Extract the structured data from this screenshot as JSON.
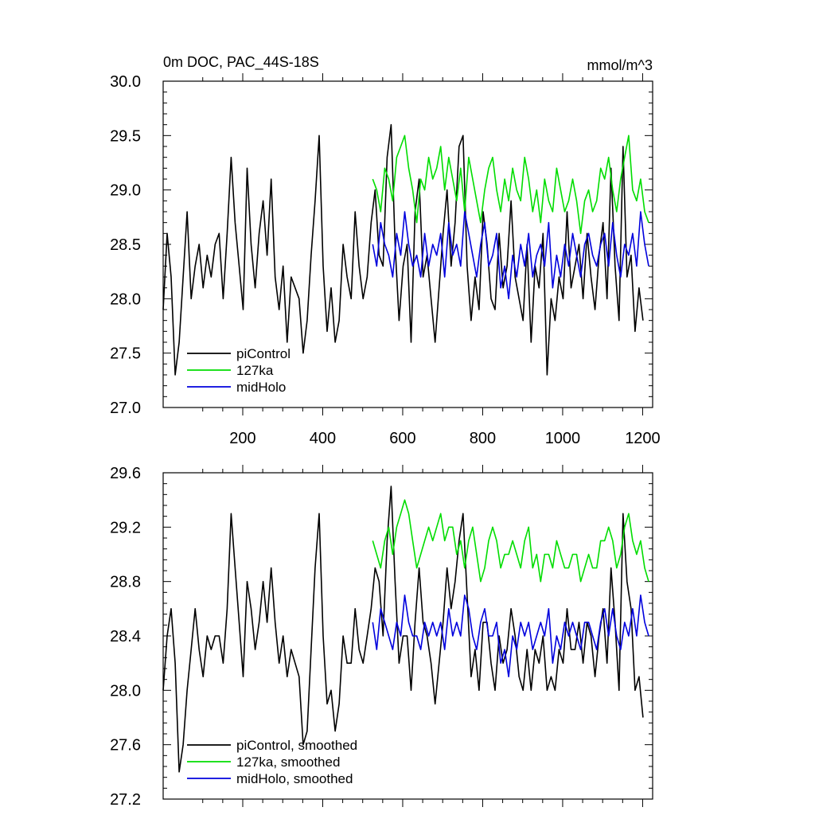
{
  "figure": {
    "title": "0m DOC, PAC_44S-18S",
    "units": "mmol/m^3"
  },
  "colors": {
    "piControl": "#000000",
    "127ka": "#00dd00",
    "midHolo": "#0000dd"
  },
  "chart_data": [
    {
      "type": "line",
      "panel": "top",
      "title": "0m DOC, PAC_44S-18S",
      "units": "mmol/m^3",
      "xlim": [
        1,
        1225
      ],
      "ylim": [
        27.0,
        30.0
      ],
      "xticks": [
        200,
        400,
        600,
        800,
        1000,
        1200
      ],
      "xtick_labels": [
        "200",
        "400",
        "600",
        "800",
        "1000",
        "1200"
      ],
      "yticks": [
        27.0,
        27.5,
        28.0,
        28.5,
        29.0,
        29.5,
        30.0
      ],
      "ytick_labels": [
        "27.0",
        "27.5",
        "28.0",
        "28.5",
        "29.0",
        "29.5",
        "30.0"
      ],
      "legend_position": "bottom-left",
      "series": [
        {
          "name": "piControl",
          "key": "piControl",
          "x_start": 1,
          "x_step": 10,
          "values": [
            27.9,
            28.6,
            28.2,
            27.3,
            27.6,
            28.2,
            28.8,
            28.0,
            28.3,
            28.5,
            28.1,
            28.4,
            28.2,
            28.5,
            28.6,
            28.0,
            28.6,
            29.3,
            28.7,
            28.3,
            27.9,
            29.2,
            28.5,
            28.1,
            28.6,
            28.9,
            28.4,
            29.1,
            28.2,
            27.9,
            28.3,
            27.6,
            28.2,
            28.1,
            28.0,
            27.5,
            27.8,
            28.4,
            28.9,
            29.5,
            28.3,
            27.7,
            28.1,
            27.6,
            27.8,
            28.5,
            28.2,
            28.0,
            28.8,
            28.3,
            28.0,
            28.2,
            28.7,
            29.0,
            28.4,
            28.3,
            29.3,
            29.6,
            28.5,
            27.8,
            28.3,
            28.5,
            27.6,
            28.8,
            29.1,
            28.2,
            28.4,
            28.0,
            27.6,
            28.1,
            28.6,
            29.0,
            28.3,
            28.7,
            29.4,
            29.5,
            28.3,
            27.8,
            28.2,
            27.9,
            28.8,
            28.5,
            28.0,
            27.9,
            28.6,
            28.1,
            28.3,
            28.9,
            28.2,
            28.0,
            27.8,
            28.5,
            27.6,
            28.3,
            28.1,
            28.6,
            27.3,
            28.0,
            27.8,
            28.2,
            28.0,
            28.8,
            28.1,
            28.3,
            28.5,
            28.0,
            28.6,
            28.2,
            27.9,
            28.4,
            28.7,
            28.0,
            29.2,
            28.3,
            27.8,
            29.4,
            28.2,
            28.4,
            27.7,
            28.1,
            27.8
          ]
        },
        {
          "name": "127ka",
          "key": "127ka",
          "x_start": 525,
          "x_step": 10,
          "values": [
            29.1,
            29.0,
            28.8,
            29.2,
            29.1,
            28.9,
            29.3,
            29.4,
            29.5,
            29.2,
            29.0,
            28.7,
            29.1,
            29.0,
            29.3,
            29.1,
            29.2,
            29.4,
            29.0,
            29.3,
            29.1,
            28.9,
            29.2,
            28.8,
            29.3,
            29.1,
            28.9,
            28.7,
            29.0,
            29.2,
            29.3,
            29.0,
            28.8,
            29.1,
            28.9,
            29.2,
            29.0,
            28.9,
            29.3,
            29.1,
            28.8,
            29.0,
            28.7,
            29.1,
            28.9,
            28.8,
            29.2,
            29.0,
            28.8,
            28.9,
            29.1,
            28.9,
            28.6,
            28.9,
            29.0,
            28.8,
            28.9,
            29.2,
            29.1,
            29.3,
            29.0,
            28.8,
            29.1,
            29.3,
            29.5,
            29.0,
            28.9,
            29.1,
            28.8,
            28.7
          ]
        },
        {
          "name": "midHolo",
          "key": "midHolo",
          "x_start": 525,
          "x_step": 10,
          "values": [
            28.5,
            28.3,
            28.7,
            28.5,
            28.4,
            28.2,
            28.6,
            28.4,
            28.8,
            28.5,
            28.3,
            28.4,
            28.2,
            28.6,
            28.3,
            28.5,
            28.4,
            28.6,
            28.2,
            28.7,
            28.4,
            28.5,
            28.3,
            28.8,
            28.6,
            28.4,
            28.2,
            28.5,
            28.7,
            28.3,
            28.4,
            28.6,
            28.1,
            28.3,
            28.0,
            28.4,
            28.2,
            28.5,
            28.3,
            28.6,
            28.2,
            28.4,
            28.5,
            28.3,
            28.7,
            28.1,
            28.4,
            28.2,
            28.5,
            28.3,
            28.6,
            28.4,
            28.2,
            28.5,
            28.6,
            28.4,
            28.3,
            28.5,
            28.6,
            28.3,
            28.7,
            28.4,
            28.2,
            28.5,
            28.4,
            28.6,
            28.3,
            28.8,
            28.5,
            28.3
          ]
        }
      ],
      "legend": [
        "piControl",
        "127ka",
        "midHolo"
      ]
    },
    {
      "type": "line",
      "panel": "bottom",
      "xlim": [
        1,
        1225
      ],
      "ylim": [
        27.2,
        29.6
      ],
      "xticks": [
        200,
        400,
        600,
        800,
        1000,
        1200
      ],
      "yticks": [
        27.2,
        27.6,
        28.0,
        28.4,
        28.8,
        29.2,
        29.6
      ],
      "ytick_labels": [
        "27.2",
        "27.6",
        "28.0",
        "28.4",
        "28.8",
        "29.2",
        "29.6"
      ],
      "legend_position": "bottom-left",
      "series": [
        {
          "name": "piControl, smoothed",
          "key": "piControl",
          "x_start": 1,
          "x_step": 10,
          "values": [
            28.0,
            28.4,
            28.6,
            28.2,
            27.4,
            27.6,
            28.0,
            28.3,
            28.6,
            28.3,
            28.1,
            28.4,
            28.3,
            28.4,
            28.4,
            28.2,
            28.6,
            29.3,
            28.9,
            28.5,
            28.1,
            28.8,
            28.6,
            28.3,
            28.5,
            28.8,
            28.5,
            28.9,
            28.5,
            28.2,
            28.4,
            28.1,
            28.3,
            28.2,
            28.1,
            27.6,
            27.7,
            28.3,
            28.9,
            29.3,
            28.4,
            27.9,
            28.0,
            27.7,
            27.9,
            28.4,
            28.2,
            28.2,
            28.6,
            28.3,
            28.2,
            28.4,
            28.6,
            28.9,
            28.8,
            28.4,
            29.1,
            29.5,
            28.8,
            28.2,
            28.4,
            28.4,
            28.0,
            28.5,
            28.9,
            28.5,
            28.4,
            28.2,
            27.9,
            28.2,
            28.5,
            28.9,
            28.6,
            28.8,
            29.1,
            29.3,
            28.7,
            28.1,
            28.3,
            28.0,
            28.5,
            28.5,
            28.2,
            28.0,
            28.4,
            28.2,
            28.3,
            28.6,
            28.4,
            28.1,
            28.0,
            28.3,
            28.0,
            28.3,
            28.2,
            28.4,
            28.0,
            28.1,
            28.0,
            28.3,
            28.2,
            28.6,
            28.3,
            28.3,
            28.5,
            28.2,
            28.5,
            28.4,
            28.1,
            28.4,
            28.6,
            28.2,
            28.9,
            28.5,
            28.0,
            29.3,
            28.8,
            28.6,
            28.0,
            28.1,
            27.8
          ]
        },
        {
          "name": "127ka, smoothed",
          "key": "127ka",
          "x_start": 525,
          "x_step": 10,
          "values": [
            29.1,
            29.0,
            28.9,
            29.1,
            29.2,
            29.0,
            29.2,
            29.3,
            29.4,
            29.3,
            29.1,
            28.9,
            29.0,
            29.1,
            29.2,
            29.1,
            29.2,
            29.3,
            29.1,
            29.2,
            29.2,
            29.0,
            29.1,
            28.9,
            29.1,
            29.2,
            29.0,
            28.8,
            28.9,
            29.1,
            29.2,
            29.1,
            28.9,
            29.0,
            29.0,
            29.1,
            29.0,
            28.9,
            29.1,
            29.2,
            28.9,
            29.0,
            28.8,
            29.0,
            29.0,
            28.9,
            29.1,
            29.0,
            28.9,
            28.9,
            29.0,
            29.0,
            28.8,
            28.9,
            29.0,
            28.9,
            28.9,
            29.1,
            29.1,
            29.2,
            29.1,
            28.9,
            29.0,
            29.2,
            29.3,
            29.1,
            29.0,
            29.1,
            28.9,
            28.8
          ]
        },
        {
          "name": "midHolo, smoothed",
          "key": "midHolo",
          "x_start": 525,
          "x_step": 10,
          "values": [
            28.5,
            28.3,
            28.6,
            28.5,
            28.4,
            28.3,
            28.5,
            28.4,
            28.7,
            28.5,
            28.4,
            28.4,
            28.3,
            28.5,
            28.4,
            28.5,
            28.4,
            28.5,
            28.3,
            28.6,
            28.4,
            28.5,
            28.4,
            28.7,
            28.6,
            28.4,
            28.3,
            28.5,
            28.6,
            28.4,
            28.4,
            28.5,
            28.2,
            28.3,
            28.1,
            28.4,
            28.3,
            28.5,
            28.4,
            28.5,
            28.3,
            28.4,
            28.5,
            28.4,
            28.6,
            28.2,
            28.4,
            28.3,
            28.5,
            28.4,
            28.5,
            28.4,
            28.3,
            28.5,
            28.5,
            28.4,
            28.3,
            28.5,
            28.6,
            28.4,
            28.6,
            28.4,
            28.3,
            28.5,
            28.4,
            28.6,
            28.4,
            28.7,
            28.5,
            28.4
          ]
        }
      ],
      "legend": [
        "piControl, smoothed",
        "127ka, smoothed",
        "midHolo, smoothed"
      ]
    }
  ]
}
